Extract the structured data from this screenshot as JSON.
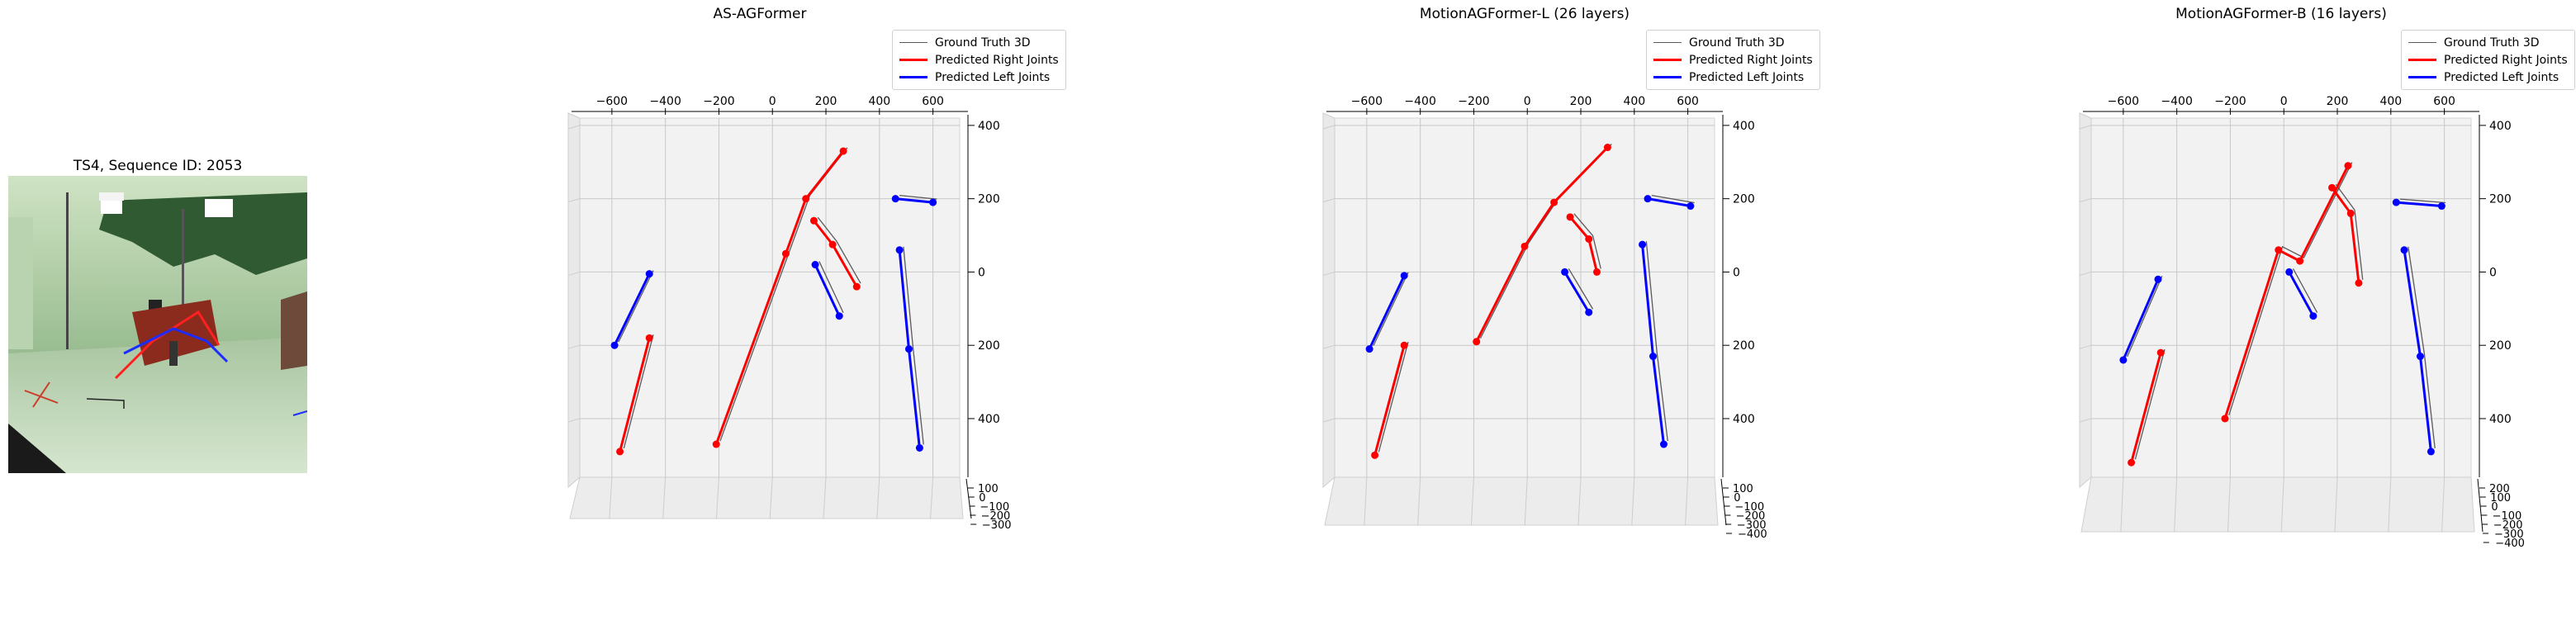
{
  "figure": {
    "image_panel": {
      "title": "TS4, Sequence ID: 2053",
      "scene": "motion-capture studio, green-tinted lighting, actor reclining on red chair with red/blue 2D skeleton overlay"
    },
    "legend_entries": [
      {
        "label": "Ground Truth 3D",
        "color": "#5a5a5a"
      },
      {
        "label": "Predicted Right Joints",
        "color": "#ff0000"
      },
      {
        "label": "Predicted Left Joints",
        "color": "#0000ff"
      }
    ]
  },
  "chart_data": [
    {
      "type": "scatter",
      "title": "AS-AGFormer",
      "x_ticks": [
        "−600",
        "−400",
        "−200",
        "0",
        "200",
        "400",
        "600"
      ],
      "y_ticks": [
        "400",
        "200",
        "0",
        "200",
        "400"
      ],
      "z_ticks": [
        "100",
        "0",
        "−100",
        "−200",
        "−300"
      ],
      "series": [
        {
          "name": "Predicted Right Joints",
          "color": "#ff0000",
          "polylines": [
            [
              [
                -210,
                -470
              ],
              [
                50,
                50
              ],
              [
                125,
                200
              ],
              [
                265,
                330
              ]
            ],
            [
              [
                -570,
                -490
              ],
              [
                -460,
                -180
              ]
            ],
            [
              [
                155,
                140
              ],
              [
                225,
                75
              ],
              [
                315,
                -40
              ]
            ]
          ]
        },
        {
          "name": "Predicted Left Joints",
          "color": "#0000ff",
          "polylines": [
            [
              [
                -590,
                -200
              ],
              [
                -460,
                -5
              ]
            ],
            [
              [
                160,
                20
              ],
              [
                250,
                -120
              ]
            ],
            [
              [
                460,
                200
              ],
              [
                600,
                190
              ]
            ],
            [
              [
                475,
                60
              ],
              [
                510,
                -210
              ],
              [
                550,
                -480
              ]
            ]
          ]
        }
      ]
    },
    {
      "type": "scatter",
      "title": "MotionAGFormer-L (26 layers)",
      "x_ticks": [
        "−600",
        "−400",
        "−200",
        "0",
        "200",
        "400",
        "600"
      ],
      "y_ticks": [
        "400",
        "200",
        "0",
        "200",
        "400"
      ],
      "z_ticks": [
        "100",
        "0",
        "−100",
        "−200",
        "−300",
        "−400"
      ],
      "series": [
        {
          "name": "Predicted Right Joints",
          "color": "#ff0000",
          "polylines": [
            [
              [
                -190,
                -190
              ],
              [
                -10,
                70
              ],
              [
                100,
                190
              ],
              [
                300,
                340
              ]
            ],
            [
              [
                -570,
                -500
              ],
              [
                -460,
                -200
              ]
            ],
            [
              [
                160,
                150
              ],
              [
                230,
                90
              ],
              [
                260,
                0
              ]
            ]
          ]
        },
        {
          "name": "Predicted Left Joints",
          "color": "#0000ff",
          "polylines": [
            [
              [
                -590,
                -210
              ],
              [
                -460,
                -10
              ]
            ],
            [
              [
                140,
                0
              ],
              [
                230,
                -110
              ]
            ],
            [
              [
                450,
                200
              ],
              [
                610,
                180
              ]
            ],
            [
              [
                430,
                75
              ],
              [
                470,
                -230
              ],
              [
                510,
                -470
              ]
            ]
          ]
        }
      ]
    },
    {
      "type": "scatter",
      "title": "MotionAGFormer-B (16 layers)",
      "x_ticks": [
        "−600",
        "−400",
        "−200",
        "0",
        "200",
        "400",
        "600"
      ],
      "y_ticks": [
        "400",
        "200",
        "0",
        "200",
        "400"
      ],
      "z_ticks": [
        "200",
        "100",
        "0",
        "−100",
        "−200",
        "−300",
        "−400"
      ],
      "series": [
        {
          "name": "Predicted Right Joints",
          "color": "#ff0000",
          "polylines": [
            [
              [
                -220,
                -400
              ],
              [
                -20,
                60
              ],
              [
                60,
                30
              ],
              [
                240,
                290
              ]
            ],
            [
              [
                -570,
                -520
              ],
              [
                -460,
                -220
              ]
            ],
            [
              [
                180,
                230
              ],
              [
                250,
                160
              ],
              [
                280,
                -30
              ]
            ]
          ]
        },
        {
          "name": "Predicted Left Joints",
          "color": "#0000ff",
          "polylines": [
            [
              [
                -600,
                -240
              ],
              [
                -470,
                -20
              ]
            ],
            [
              [
                20,
                0
              ],
              [
                110,
                -120
              ]
            ],
            [
              [
                420,
                190
              ],
              [
                590,
                180
              ]
            ],
            [
              [
                450,
                60
              ],
              [
                510,
                -230
              ],
              [
                550,
                -490
              ]
            ]
          ]
        }
      ]
    }
  ]
}
